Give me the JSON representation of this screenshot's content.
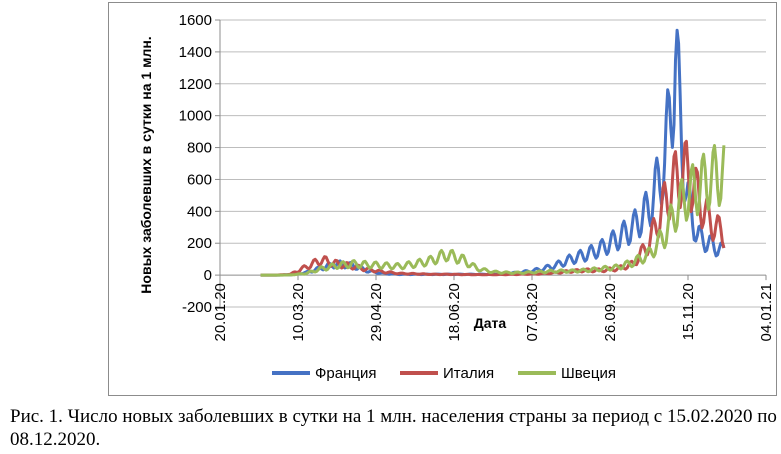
{
  "caption": "Рис. 1. Число новых заболевших в сутки на 1 млн. населения страны за период с 15.02.2020 по 08.12.2020.",
  "chart_data": {
    "type": "line",
    "title": "",
    "xlabel": "Дата",
    "ylabel": "Новых заболевших в сутки на 1 млн.",
    "x_range": [
      "20.01.20",
      "04.01.21"
    ],
    "x_ticks": [
      "20.01.20",
      "10.03.20",
      "29.04.20",
      "18.06.20",
      "07.08.20",
      "26.09.20",
      "15.11.20",
      "04.01.21"
    ],
    "ylim": [
      -200,
      1600
    ],
    "y_ticks": [
      -200,
      0,
      200,
      400,
      600,
      800,
      1000,
      1200,
      1400,
      1600
    ],
    "grid": "horizontal",
    "legend_position": "bottom",
    "x": [
      "15.02.20",
      "25.02.20",
      "05.03.20",
      "15.03.20",
      "25.03.20",
      "04.04.20",
      "14.04.20",
      "24.04.20",
      "04.05.20",
      "14.05.20",
      "24.05.20",
      "03.06.20",
      "13.06.20",
      "23.06.20",
      "03.07.20",
      "13.07.20",
      "23.07.20",
      "02.08.20",
      "12.08.20",
      "22.08.20",
      "01.09.20",
      "11.09.20",
      "21.09.20",
      "01.10.20",
      "11.10.20",
      "21.10.20",
      "31.10.20",
      "07.11.20",
      "14.11.20",
      "21.11.20",
      "28.11.20",
      "08.12.20"
    ],
    "series": [
      {
        "name": "Франция",
        "color": "#4572c4",
        "values": [
          0,
          0,
          2,
          15,
          45,
          70,
          60,
          25,
          10,
          5,
          5,
          5,
          5,
          5,
          5,
          5,
          10,
          20,
          35,
          60,
          100,
          130,
          170,
          230,
          300,
          420,
          700,
          1350,
          500,
          250,
          200,
          150
        ]
      },
      {
        "name": "Италия",
        "color": "#c0504d",
        "values": [
          0,
          0,
          5,
          50,
          95,
          70,
          55,
          35,
          20,
          10,
          8,
          5,
          5,
          4,
          3,
          3,
          4,
          6,
          8,
          15,
          25,
          30,
          30,
          40,
          70,
          200,
          450,
          600,
          650,
          500,
          350,
          250
        ]
      },
      {
        "name": "Швеция",
        "color": "#9bbb59",
        "values": [
          0,
          0,
          1,
          10,
          40,
          60,
          70,
          65,
          60,
          55,
          70,
          90,
          130,
          100,
          40,
          20,
          15,
          15,
          20,
          25,
          25,
          30,
          40,
          50,
          80,
          130,
          250,
          400,
          500,
          550,
          600,
          650
        ]
      }
    ]
  }
}
